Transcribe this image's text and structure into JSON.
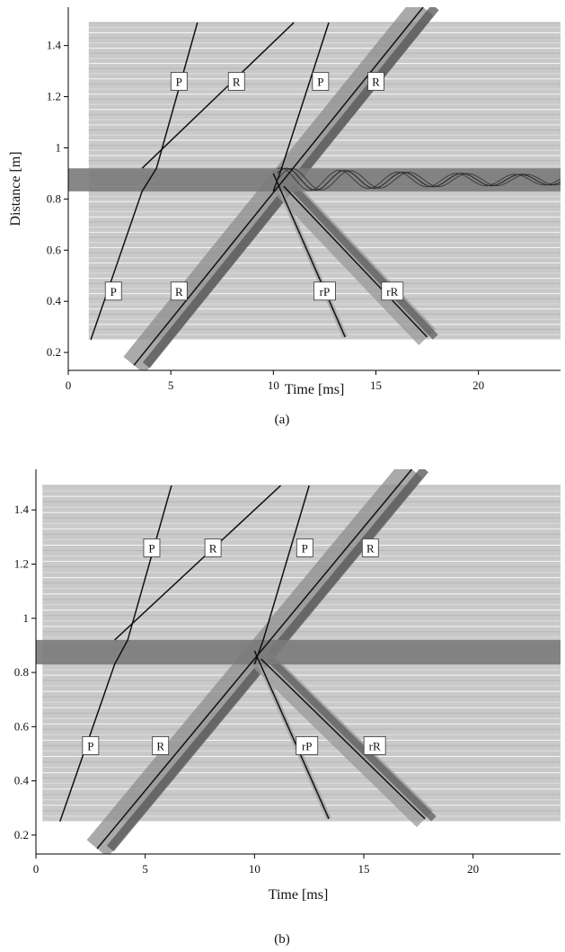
{
  "chart_data": [
    {
      "type": "line",
      "caption": "(a)",
      "xlabel": "Time [ms]",
      "ylabel": "Distance [m]",
      "xlim": [
        0,
        24
      ],
      "ylim": [
        0.13,
        1.55
      ],
      "xticks": [
        0,
        5,
        10,
        15,
        20
      ],
      "yticks": [
        0.2,
        0.4,
        0.6,
        0.8,
        1,
        1.2,
        1.4
      ],
      "ytick_labels": [
        "0.2",
        "0.4",
        "0.6",
        "0.8",
        "1",
        "1.2",
        "1.4"
      ],
      "trace_band": {
        "x_start": 1.0,
        "x_end": 24,
        "y_min": 0.25,
        "y_max": 1.49
      },
      "shaded_band": {
        "y_min": 0.83,
        "y_max": 0.92,
        "color": "#7a7a7a"
      },
      "scattered_wave_train": {
        "y": 0.875,
        "x_start": 10.2,
        "x_end": 24
      },
      "series": [
        {
          "name": "P",
          "points": [
            [
              1.1,
              0.25
            ],
            [
              3.6,
              0.83
            ],
            [
              4.3,
              0.92
            ],
            [
              6.3,
              1.49
            ]
          ]
        },
        {
          "name": "R",
          "points": [
            [
              3.6,
              0.92
            ],
            [
              11.0,
              1.49
            ]
          ]
        },
        {
          "name": "P",
          "points": [
            [
              10.0,
              0.83
            ],
            [
              10.4,
              0.92
            ],
            [
              12.7,
              1.49
            ]
          ]
        },
        {
          "name": "R",
          "points": [
            [
              3.2,
              0.15
            ],
            [
              17.3,
              1.55
            ]
          ]
        },
        {
          "name": "rP",
          "points": [
            [
              10.0,
              0.9
            ],
            [
              13.5,
              0.26
            ]
          ]
        },
        {
          "name": "rR",
          "points": [
            [
              10.5,
              0.85
            ],
            [
              17.5,
              0.26
            ]
          ]
        }
      ],
      "labels": [
        {
          "text": "P",
          "x": 5.4,
          "y": 1.26
        },
        {
          "text": "R",
          "x": 8.2,
          "y": 1.26
        },
        {
          "text": "P",
          "x": 12.3,
          "y": 1.26
        },
        {
          "text": "R",
          "x": 15.0,
          "y": 1.26
        },
        {
          "text": "P",
          "x": 2.2,
          "y": 0.44
        },
        {
          "text": "R",
          "x": 5.4,
          "y": 0.44
        },
        {
          "text": "rP",
          "x": 12.5,
          "y": 0.44
        },
        {
          "text": "rR",
          "x": 15.8,
          "y": 0.44
        }
      ]
    },
    {
      "type": "line",
      "caption": "(b)",
      "xlabel": "Time [ms]",
      "ylabel": "",
      "xlim": [
        0,
        24
      ],
      "ylim": [
        0.13,
        1.55
      ],
      "xticks": [
        0,
        5,
        10,
        15,
        20
      ],
      "yticks": [
        0.2,
        0.4,
        0.6,
        0.8,
        1,
        1.2,
        1.4
      ],
      "ytick_labels": [
        "0.2",
        "0.4",
        "0.6",
        "0.8",
        "1",
        "1.2",
        "1.4"
      ],
      "trace_band": {
        "x_start": 0.3,
        "x_end": 24,
        "y_min": 0.25,
        "y_max": 1.49
      },
      "shaded_band": {
        "y_min": 0.83,
        "y_max": 0.92,
        "color": "#7a7a7a"
      },
      "series": [
        {
          "name": "P",
          "points": [
            [
              1.1,
              0.25
            ],
            [
              3.6,
              0.83
            ],
            [
              4.2,
              0.92
            ],
            [
              6.2,
              1.49
            ]
          ]
        },
        {
          "name": "R",
          "points": [
            [
              3.6,
              0.92
            ],
            [
              11.2,
              1.49
            ]
          ]
        },
        {
          "name": "P",
          "points": [
            [
              10.0,
              0.83
            ],
            [
              10.4,
              0.92
            ],
            [
              12.5,
              1.49
            ]
          ]
        },
        {
          "name": "R",
          "points": [
            [
              2.8,
              0.15
            ],
            [
              17.2,
              1.55
            ]
          ]
        },
        {
          "name": "rP",
          "points": [
            [
              10.0,
              0.88
            ],
            [
              13.4,
              0.26
            ]
          ]
        },
        {
          "name": "rR",
          "points": [
            [
              10.3,
              0.85
            ],
            [
              17.8,
              0.26
            ]
          ]
        }
      ],
      "labels": [
        {
          "text": "P",
          "x": 5.3,
          "y": 1.26
        },
        {
          "text": "R",
          "x": 8.1,
          "y": 1.26
        },
        {
          "text": "P",
          "x": 12.3,
          "y": 1.26
        },
        {
          "text": "R",
          "x": 15.3,
          "y": 1.26
        },
        {
          "text": "P",
          "x": 2.5,
          "y": 0.53
        },
        {
          "text": "R",
          "x": 5.7,
          "y": 0.53
        },
        {
          "text": "rP",
          "x": 12.4,
          "y": 0.53
        },
        {
          "text": "rR",
          "x": 15.5,
          "y": 0.53
        }
      ]
    }
  ]
}
